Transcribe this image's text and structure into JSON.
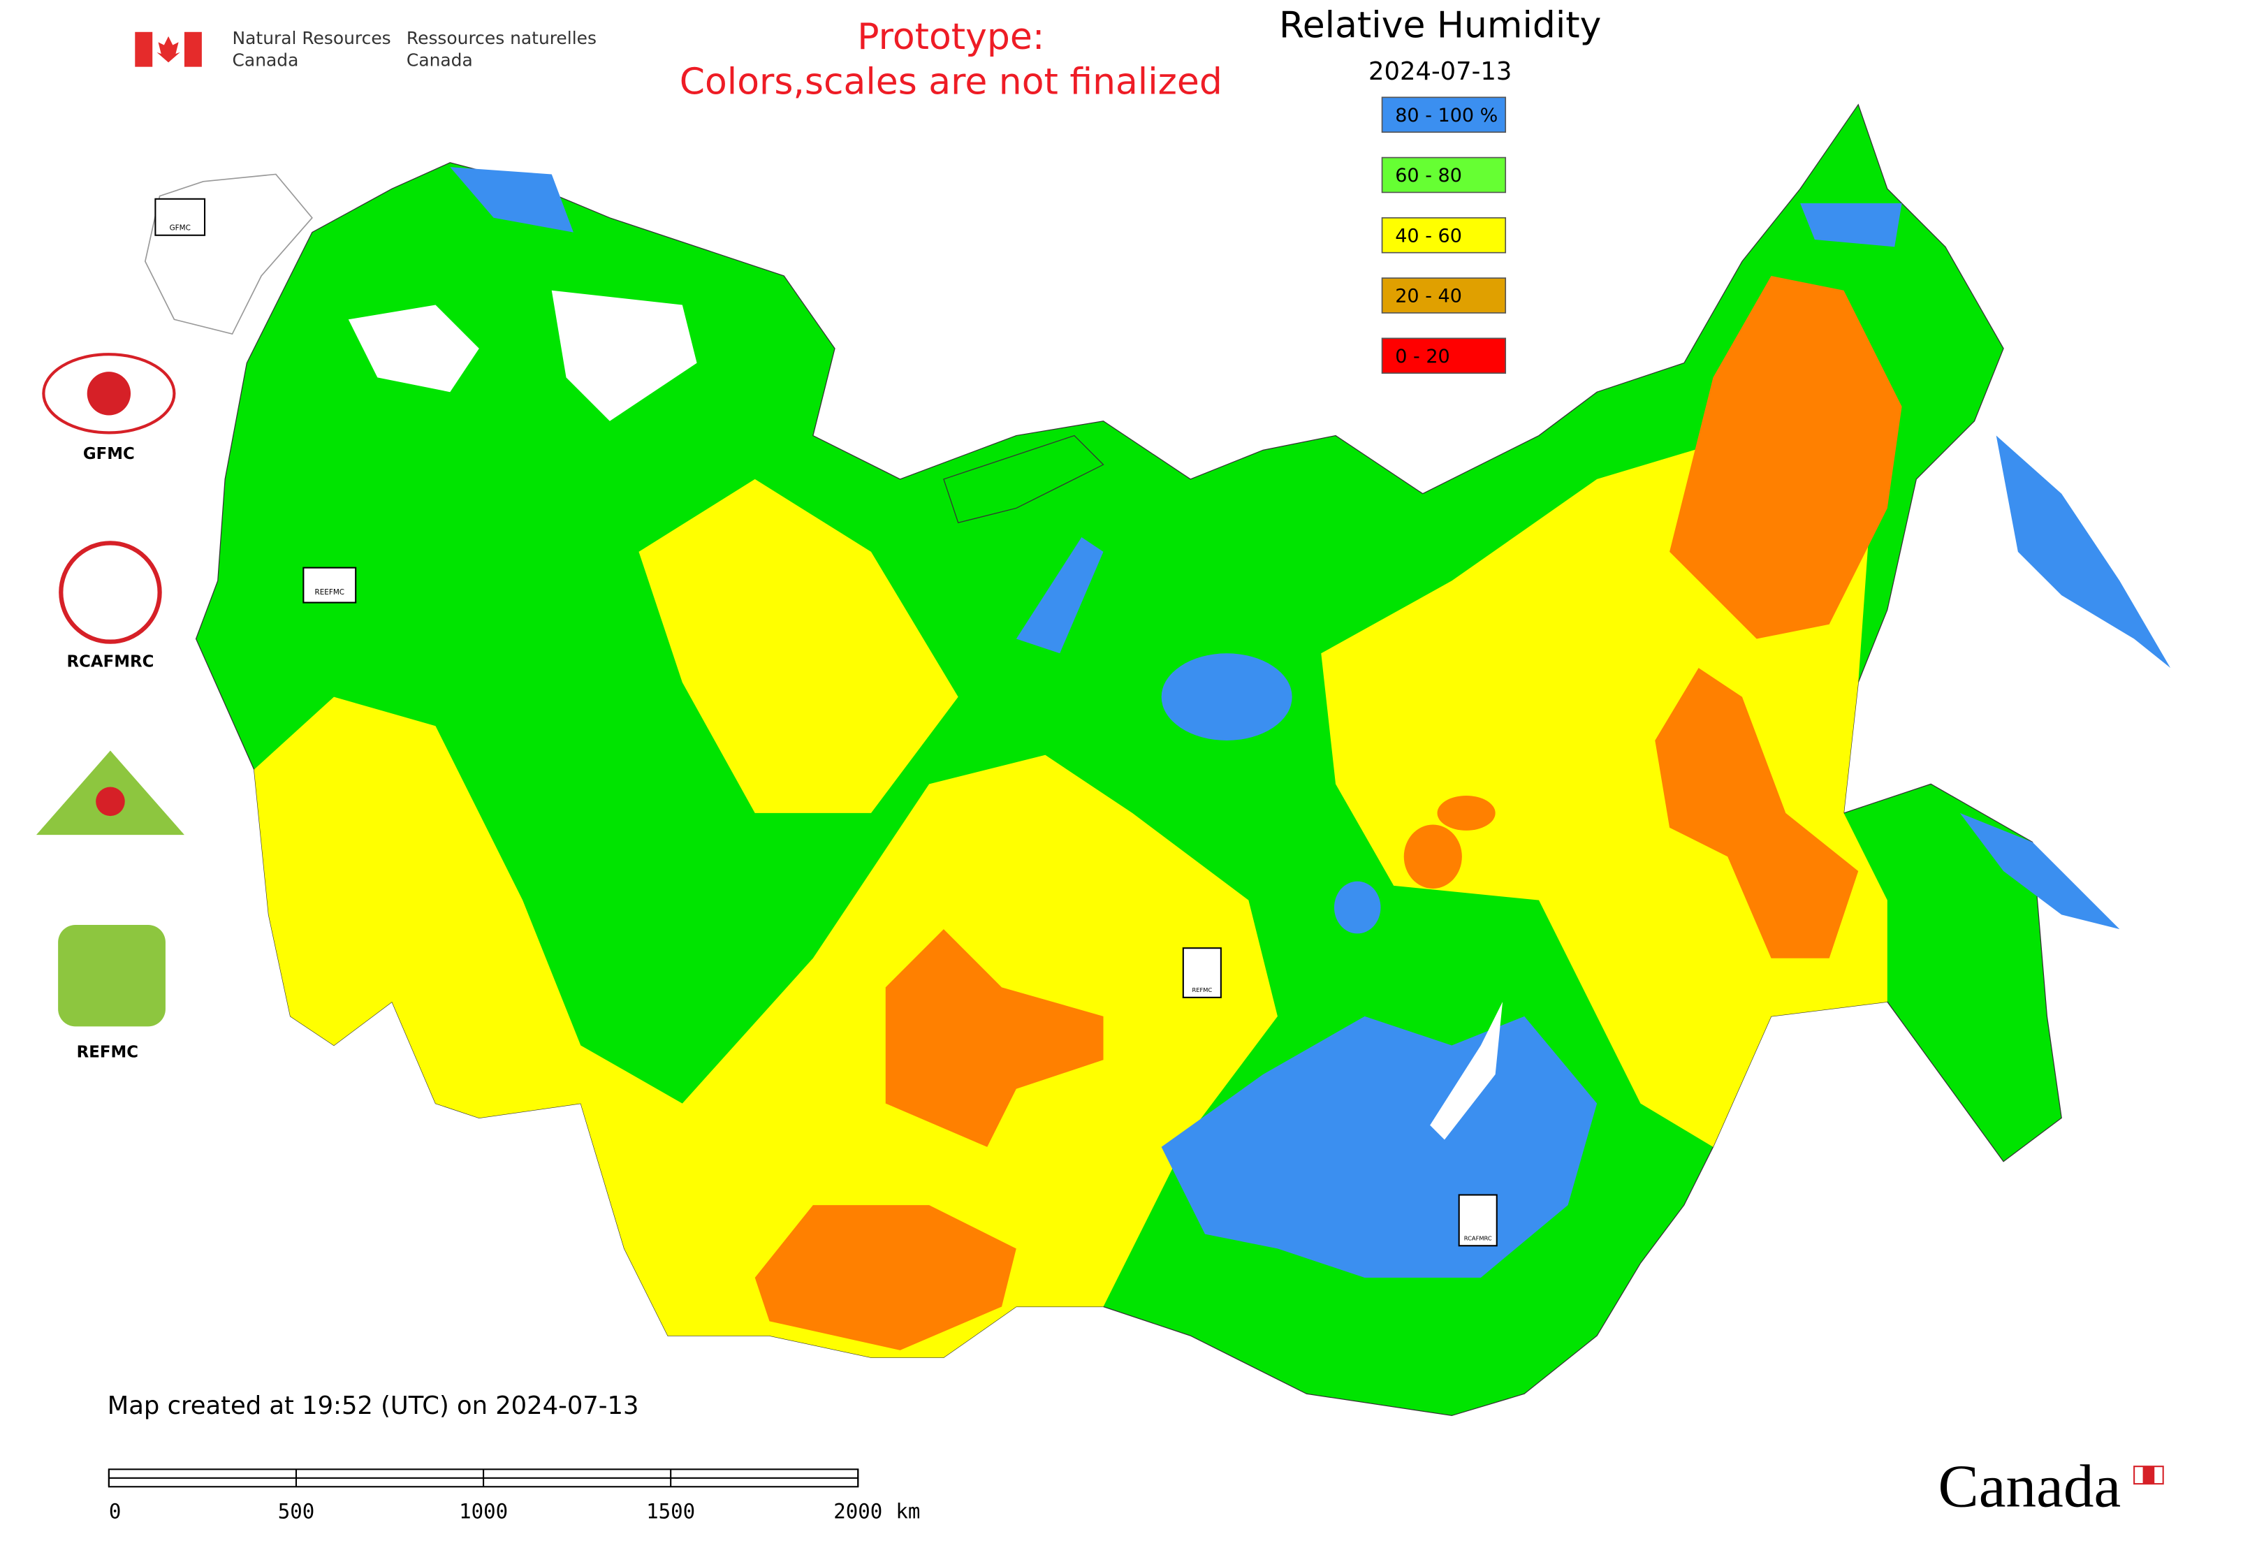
{
  "agency": {
    "en_line1": "Natural Resources",
    "en_line2": "Canada",
    "fr_line1": "Ressources naturelles",
    "fr_line2": "Canada"
  },
  "notice": [
    "Prototype:",
    "Colors,scales are not finalized"
  ],
  "title": "Relative Humidity",
  "date": "2024-07-13",
  "legend": [
    {
      "label": "80 - 100 %",
      "color": "#3b8ff0"
    },
    {
      "label": "60 - 80",
      "color": "#66ff33"
    },
    {
      "label": "40 - 60",
      "color": "#ffff00"
    },
    {
      "label": "20 - 40",
      "color": "#e0a000"
    },
    {
      "label": "0 - 20",
      "color": "#ff0000"
    }
  ],
  "centers": [
    "GFMC",
    "RCAFMRC",
    "REEFMC",
    "REFMC"
  ],
  "footer": "Map created at 19:52 (UTC) on 2024-07-13",
  "scale_bar": {
    "ticks": [
      0,
      500,
      1000,
      1500,
      2000
    ],
    "unit": "km"
  },
  "wordmark": "Canada"
}
